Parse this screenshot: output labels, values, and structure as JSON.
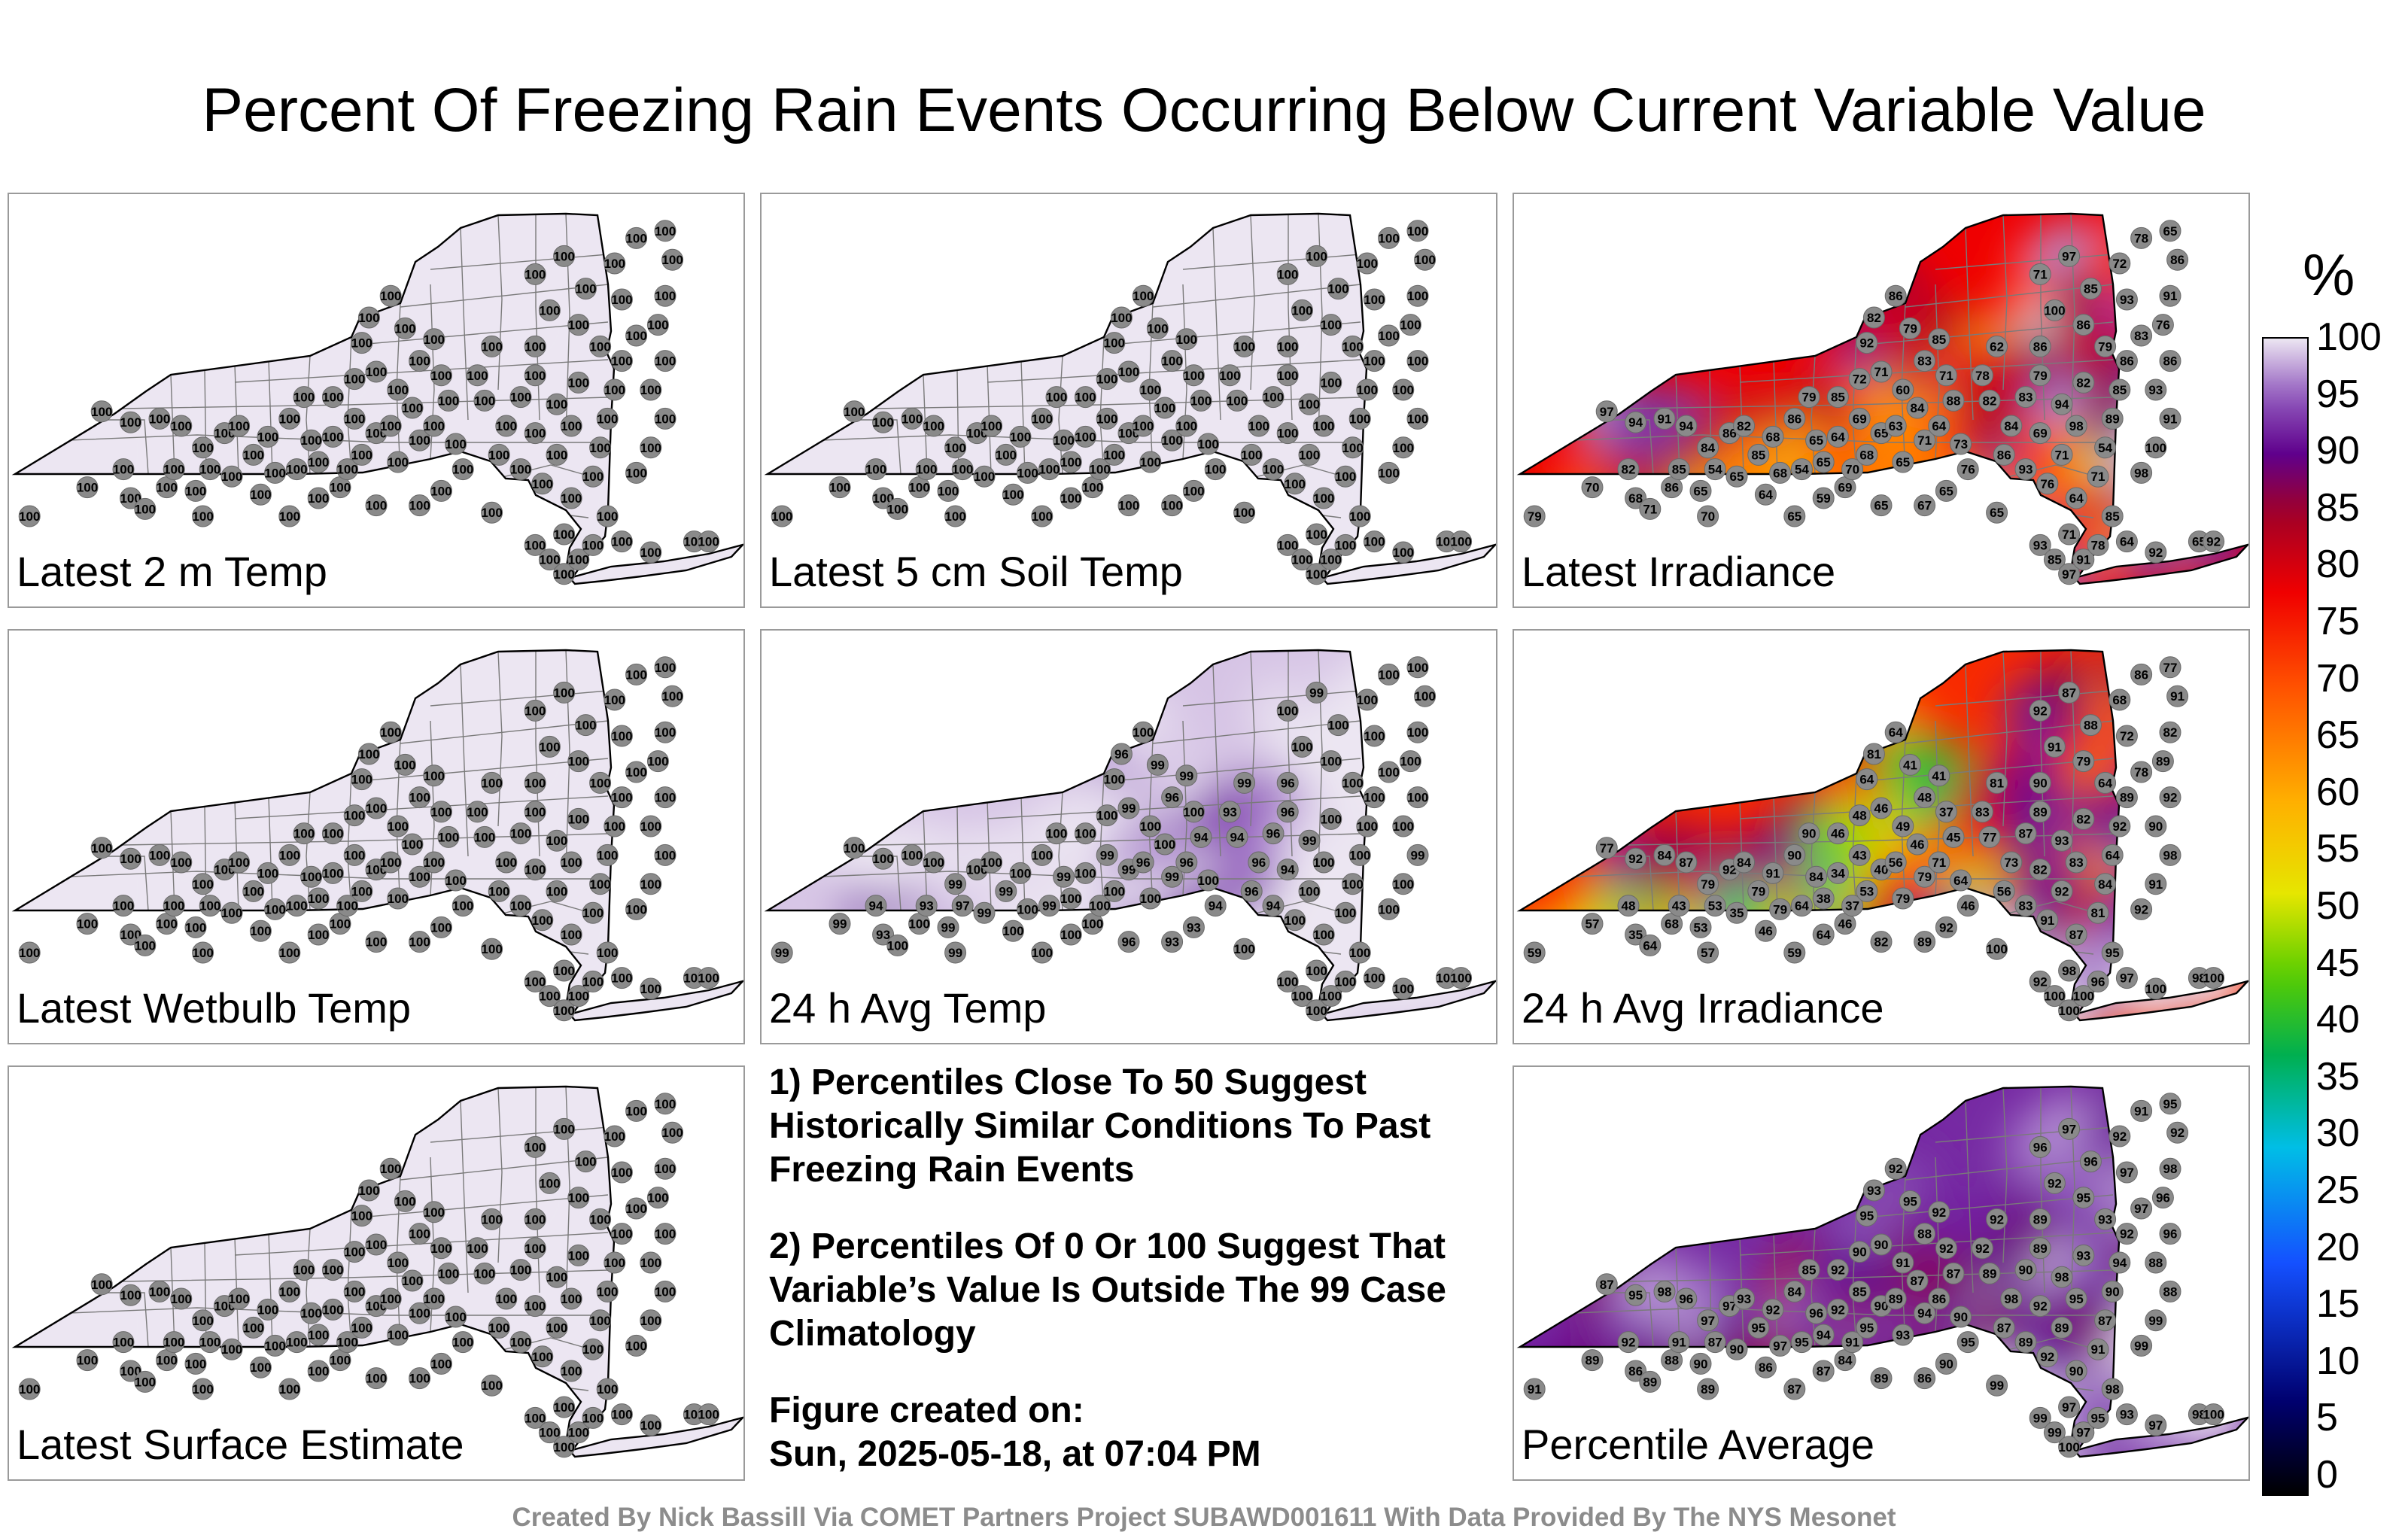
{
  "title": "Percent Of Freezing Rain Events Occurring Below Current Variable Value",
  "panels": [
    {
      "label": "Latest 2 m Temp",
      "field": "uniform100"
    },
    {
      "label": "Latest 5 cm Soil Temp",
      "field": "uniform100"
    },
    {
      "label": "Latest Irradiance",
      "field": "irradiance"
    },
    {
      "label": "Latest Wetbulb Temp",
      "field": "uniform100"
    },
    {
      "label": "24 h Avg Temp",
      "field": "avgtemp"
    },
    {
      "label": "24 h Avg Irradiance",
      "field": "avgirr"
    },
    {
      "label": "Latest Surface Estimate",
      "field": "uniform100"
    },
    {
      "label": "Percentile Average",
      "field": "average"
    }
  ],
  "notes": {
    "note1": "1) Percentiles Close To 50 Suggest Historically Similar Conditions To Past Freezing Rain Events",
    "note2": "2) Percentiles Of 0 Or 100 Suggest That Variable’s Value Is Outside The 99 Case Climatology",
    "created_label": "Figure created on:",
    "created_value": "Sun, 2025-05-18, at 07:04 PM"
  },
  "credit": "Created By Nick Bassill Via COMET Partners Project SUBAWD001611 With Data Provided By The NYS Mesonet",
  "colorbar": {
    "unit": "%",
    "ticks": [
      "100",
      "95",
      "90",
      "85",
      "80",
      "75",
      "70",
      "65",
      "60",
      "55",
      "50",
      "45",
      "40",
      "35",
      "30",
      "25",
      "20",
      "15",
      "10",
      "5",
      "0"
    ],
    "range": [
      0,
      100
    ]
  },
  "station_values": {
    "uniform100": [
      "100",
      "100",
      "100",
      "100",
      "100",
      "100",
      "100",
      "100",
      "100",
      "100",
      "100",
      "100",
      "100",
      "100",
      "100",
      "100",
      "100",
      "100",
      "100",
      "100",
      "100",
      "100",
      "100",
      "100",
      "100",
      "100",
      "100",
      "100",
      "100",
      "100",
      "100",
      "100",
      "100",
      "100",
      "100",
      "100",
      "100",
      "100",
      "100",
      "100",
      "100",
      "100",
      "100",
      "100",
      "100",
      "100",
      "100",
      "100",
      "100",
      "100",
      "100",
      "100",
      "100",
      "100",
      "100",
      "100",
      "100",
      "100",
      "100",
      "100",
      "100",
      "100",
      "100",
      "100",
      "100",
      "100",
      "100",
      "100",
      "100",
      "100",
      "100",
      "100",
      "100",
      "100",
      "100",
      "100",
      "100",
      "100",
      "100",
      "100",
      "100",
      "100",
      "100",
      "100",
      "100",
      "100",
      "100",
      "100",
      "100",
      "100",
      "100",
      "100",
      "100",
      "100",
      "100",
      "100",
      "100",
      "100",
      "100",
      "100",
      "100",
      "100",
      "100",
      "100",
      "100",
      "100",
      "100",
      "100",
      "100"
    ],
    "irradiance": [
      "79",
      "70",
      "68",
      "82",
      "71",
      "86",
      "85",
      "65",
      "70",
      "54",
      "97",
      "94",
      "91",
      "94",
      "84",
      "86",
      "82",
      "85",
      "68",
      "86",
      "79",
      "65",
      "68",
      "54",
      "65",
      "64",
      "65",
      "64",
      "65",
      "59",
      "69",
      "70",
      "68",
      "65",
      "69",
      "85",
      "72",
      "71",
      "60",
      "84",
      "63",
      "71",
      "65",
      "92",
      "82",
      "86",
      "79",
      "83",
      "85",
      "71",
      "88",
      "64",
      "73",
      "76",
      "65",
      "67",
      "65",
      "62",
      "78",
      "82",
      "84",
      "86",
      "93",
      "69",
      "83",
      "79",
      "86",
      "100",
      "71",
      "97",
      "85",
      "86",
      "79",
      "82",
      "94",
      "98",
      "71",
      "76",
      "64",
      "71",
      "54",
      "89",
      "85",
      "86",
      "83",
      "93",
      "72",
      "78",
      "65",
      "86",
      "91",
      "76",
      "86",
      "93",
      "91",
      "100",
      "98",
      "85",
      "71",
      "65",
      "93",
      "85",
      "97",
      "91",
      "78",
      "64",
      "92",
      "65",
      "92"
    ],
    "avgtemp": [
      "99",
      "99",
      "93",
      "94",
      "100",
      "100",
      "93",
      "99",
      "99",
      "97",
      "100",
      "100",
      "100",
      "100",
      "99",
      "100",
      "100",
      "99",
      "100",
      "100",
      "100",
      "99",
      "100",
      "99",
      "100",
      "100",
      "99",
      "100",
      "100",
      "100",
      "100",
      "100",
      "100",
      "99",
      "99",
      "100",
      "100",
      "99",
      "100",
      "100",
      "96",
      "99",
      "100",
      "100",
      "96",
      "100",
      "99",
      "96",
      "99",
      "100",
      "94",
      "96",
      "100",
      "94",
      "93",
      "93",
      "96",
      "99",
      "93",
      "94",
      "96",
      "96",
      "94",
      "94",
      "96",
      "96",
      "96",
      "100",
      "100",
      "99",
      "100",
      "100",
      "100",
      "100",
      "99",
      "100",
      "100",
      "100",
      "100",
      "100",
      "100",
      "100",
      "100",
      "100",
      "100",
      "100",
      "100",
      "100",
      "100",
      "100",
      "100",
      "100",
      "100",
      "100",
      "99",
      "100",
      "100",
      "100",
      "100",
      "100",
      "100",
      "100",
      "100",
      "100",
      "100",
      "100",
      "100",
      "100",
      "100"
    ],
    "avgirr": [
      "59",
      "57",
      "35",
      "48",
      "64",
      "68",
      "43",
      "53",
      "57",
      "53",
      "77",
      "92",
      "84",
      "87",
      "79",
      "92",
      "84",
      "79",
      "91",
      "90",
      "90",
      "84",
      "79",
      "64",
      "38",
      "34",
      "35",
      "46",
      "59",
      "64",
      "46",
      "37",
      "53",
      "40",
      "43",
      "46",
      "48",
      "46",
      "49",
      "46",
      "56",
      "79",
      "79",
      "64",
      "81",
      "64",
      "41",
      "48",
      "41",
      "37",
      "45",
      "71",
      "64",
      "46",
      "92",
      "89",
      "82",
      "81",
      "83",
      "77",
      "73",
      "56",
      "83",
      "82",
      "87",
      "89",
      "90",
      "91",
      "92",
      "87",
      "88",
      "79",
      "64",
      "82",
      "93",
      "83",
      "92",
      "91",
      "87",
      "81",
      "84",
      "64",
      "92",
      "89",
      "78",
      "72",
      "68",
      "86",
      "77",
      "91",
      "82",
      "89",
      "92",
      "90",
      "98",
      "91",
      "92",
      "95",
      "98",
      "100",
      "92",
      "100",
      "100",
      "100",
      "96",
      "97",
      "100",
      "98",
      "100"
    ],
    "average": [
      "91",
      "89",
      "86",
      "92",
      "89",
      "88",
      "91",
      "90",
      "89",
      "87",
      "87",
      "95",
      "98",
      "96",
      "97",
      "97",
      "93",
      "95",
      "92",
      "84",
      "85",
      "96",
      "97",
      "95",
      "94",
      "92",
      "90",
      "86",
      "87",
      "87",
      "84",
      "91",
      "95",
      "90",
      "85",
      "92",
      "90",
      "90",
      "91",
      "87",
      "89",
      "94",
      "93",
      "95",
      "93",
      "92",
      "95",
      "88",
      "92",
      "92",
      "87",
      "86",
      "90",
      "95",
      "90",
      "86",
      "89",
      "92",
      "92",
      "89",
      "98",
      "87",
      "89",
      "92",
      "90",
      "89",
      "89",
      "92",
      "96",
      "97",
      "96",
      "95",
      "93",
      "93",
      "98",
      "95",
      "89",
      "92",
      "90",
      "91",
      "87",
      "90",
      "94",
      "92",
      "97",
      "97",
      "92",
      "91",
      "95",
      "92",
      "98",
      "96",
      "96",
      "88",
      "88",
      "99",
      "99",
      "98",
      "97",
      "99",
      "99",
      "99",
      "100",
      "97",
      "95",
      "93",
      "97",
      "98",
      "100"
    ]
  }
}
